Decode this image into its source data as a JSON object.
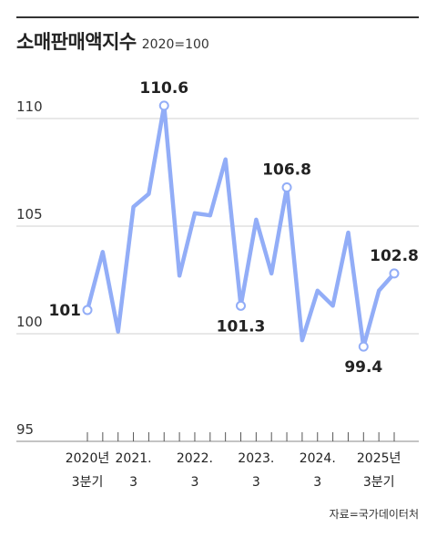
{
  "header": {
    "title": "소매판매액지수",
    "subtitle": "2020=100"
  },
  "source": "자료=국가데이터처",
  "colors": {
    "line": "#92adf7",
    "marker_fill": "#ffffff",
    "grid": "#d0d0d0",
    "rule": "#333333"
  },
  "chart_data": {
    "type": "line",
    "title": "소매판매액지수",
    "subtitle": "2020=100",
    "ylim": [
      95,
      111
    ],
    "y_ticks": [
      "95",
      "100",
      "105",
      "110"
    ],
    "grid": true,
    "x_tick_labels": [
      {
        "index": 0,
        "lines": [
          "2020년",
          "3분기"
        ]
      },
      {
        "index": 3,
        "lines": [
          "2021.",
          "3"
        ]
      },
      {
        "index": 7,
        "lines": [
          "2022.",
          "3"
        ]
      },
      {
        "index": 11,
        "lines": [
          "2023.",
          "3"
        ]
      },
      {
        "index": 15,
        "lines": [
          "2024.",
          "3"
        ]
      },
      {
        "index": 19,
        "lines": [
          "2025년",
          "3분기"
        ]
      }
    ],
    "series": [
      {
        "values": [
          101.1,
          103.8,
          100.1,
          105.9,
          106.5,
          110.6,
          102.7,
          105.6,
          105.5,
          108.1,
          101.3,
          105.3,
          102.8,
          106.8,
          99.7,
          102.0,
          101.3,
          104.7,
          99.4,
          102.0,
          102.8
        ]
      }
    ],
    "annotations": [
      {
        "index": 0,
        "label": "101",
        "pos": "left"
      },
      {
        "index": 5,
        "label": "110.6",
        "pos": "top"
      },
      {
        "index": 10,
        "label": "101.3",
        "pos": "bottom"
      },
      {
        "index": 13,
        "label": "106.8",
        "pos": "top"
      },
      {
        "index": 18,
        "label": "99.4",
        "pos": "bottom"
      },
      {
        "index": 20,
        "label": "102.8",
        "pos": "top"
      }
    ]
  }
}
